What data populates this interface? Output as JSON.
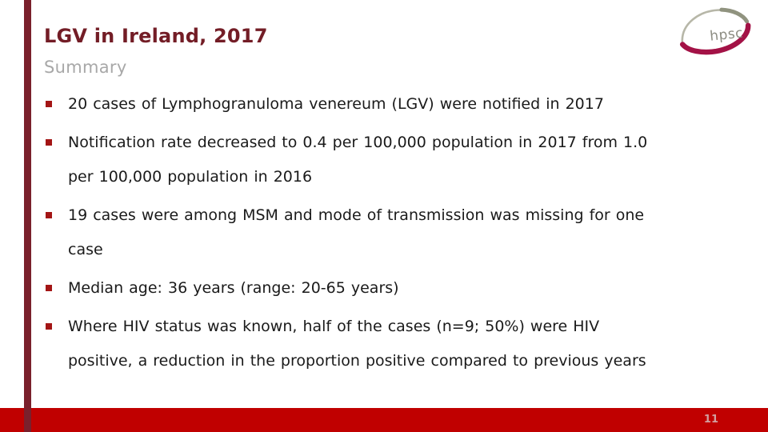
{
  "slide": {
    "title": "LGV in Ireland, 2017",
    "subtitle": "Summary",
    "bullets": [
      {
        "lines": [
          "20 cases of Lymphogranuloma venereum (LGV) were notified in 2017"
        ]
      },
      {
        "lines": [
          "Notification rate decreased to 0.4 per 100,000 population in 2017 from 1.0",
          "per 100,000 population in 2016"
        ]
      },
      {
        "lines": [
          "19 cases were among MSM and mode of transmission was missing for one",
          "case"
        ]
      },
      {
        "lines": [
          "Median age: 36 years (range: 20-65 years)"
        ]
      },
      {
        "lines": [
          "Where HIV status was known, half of the cases (n=9; 50%) were HIV",
          "positive, a reduction in the proportion positive compared to previous years"
        ]
      }
    ],
    "logo": {
      "text": "hpsc"
    },
    "footer": {
      "page_number": "11"
    },
    "colors": {
      "title_color": "#731d26",
      "subtitle_color": "#a8a8a8",
      "body_color": "#1a1a1a",
      "bullet_color": "#a31515",
      "stripe_color": "#7a202c",
      "footer_color": "#c00000",
      "page_number_color": "#d2a0a0",
      "logo_gray": "#b7b7a8",
      "logo_olive": "#90937f",
      "logo_crimson": "#a31246",
      "logo_text_color": "#8c8c82"
    }
  }
}
